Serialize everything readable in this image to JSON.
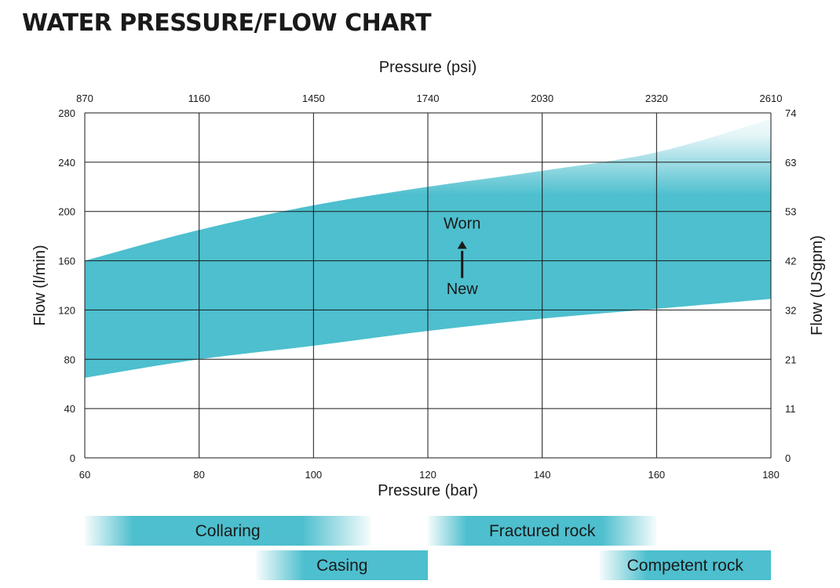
{
  "title": "WATER PRESSURE/FLOW CHART",
  "chart_data": {
    "type": "area",
    "title": "WATER PRESSURE/FLOW CHART",
    "xlabel": "Pressure (bar)",
    "x2label": "Pressure (psi)",
    "ylabel": "Flow (l/min)",
    "y2label": "Flow (USgpm)",
    "xlim": [
      60,
      180
    ],
    "ylim": [
      0,
      280
    ],
    "grid": true,
    "x_ticks": [
      60,
      80,
      100,
      120,
      140,
      160,
      180
    ],
    "x_ticks_psi": [
      "870",
      "1160",
      "1450",
      "1740",
      "2030",
      "2320",
      "2610"
    ],
    "y_ticks": [
      0,
      40,
      80,
      120,
      160,
      200,
      240,
      280
    ],
    "y_ticks_usgpm": [
      "0",
      "11",
      "21",
      "32",
      "42",
      "53",
      "63",
      "74"
    ],
    "band": {
      "x": [
        60,
        80,
        100,
        120,
        140,
        160,
        180
      ],
      "new": [
        65,
        80,
        91,
        103,
        113,
        121,
        129
      ],
      "worn": [
        160,
        185,
        205,
        220,
        233,
        248,
        275
      ],
      "color": "#4dbfce"
    },
    "annotations": {
      "top": "Worn",
      "bottom": "New"
    },
    "ranges": [
      {
        "label": "Collaring",
        "x": [
          60,
          110
        ],
        "row": 0,
        "fade": "both"
      },
      {
        "label": "Fractured rock",
        "x": [
          120,
          160
        ],
        "row": 0,
        "fade": "both"
      },
      {
        "label": "Casing",
        "x": [
          90,
          120
        ],
        "row": 1,
        "fade": "left"
      },
      {
        "label": "Competent rock",
        "x": [
          150,
          180
        ],
        "row": 1,
        "fade": "left"
      }
    ]
  }
}
